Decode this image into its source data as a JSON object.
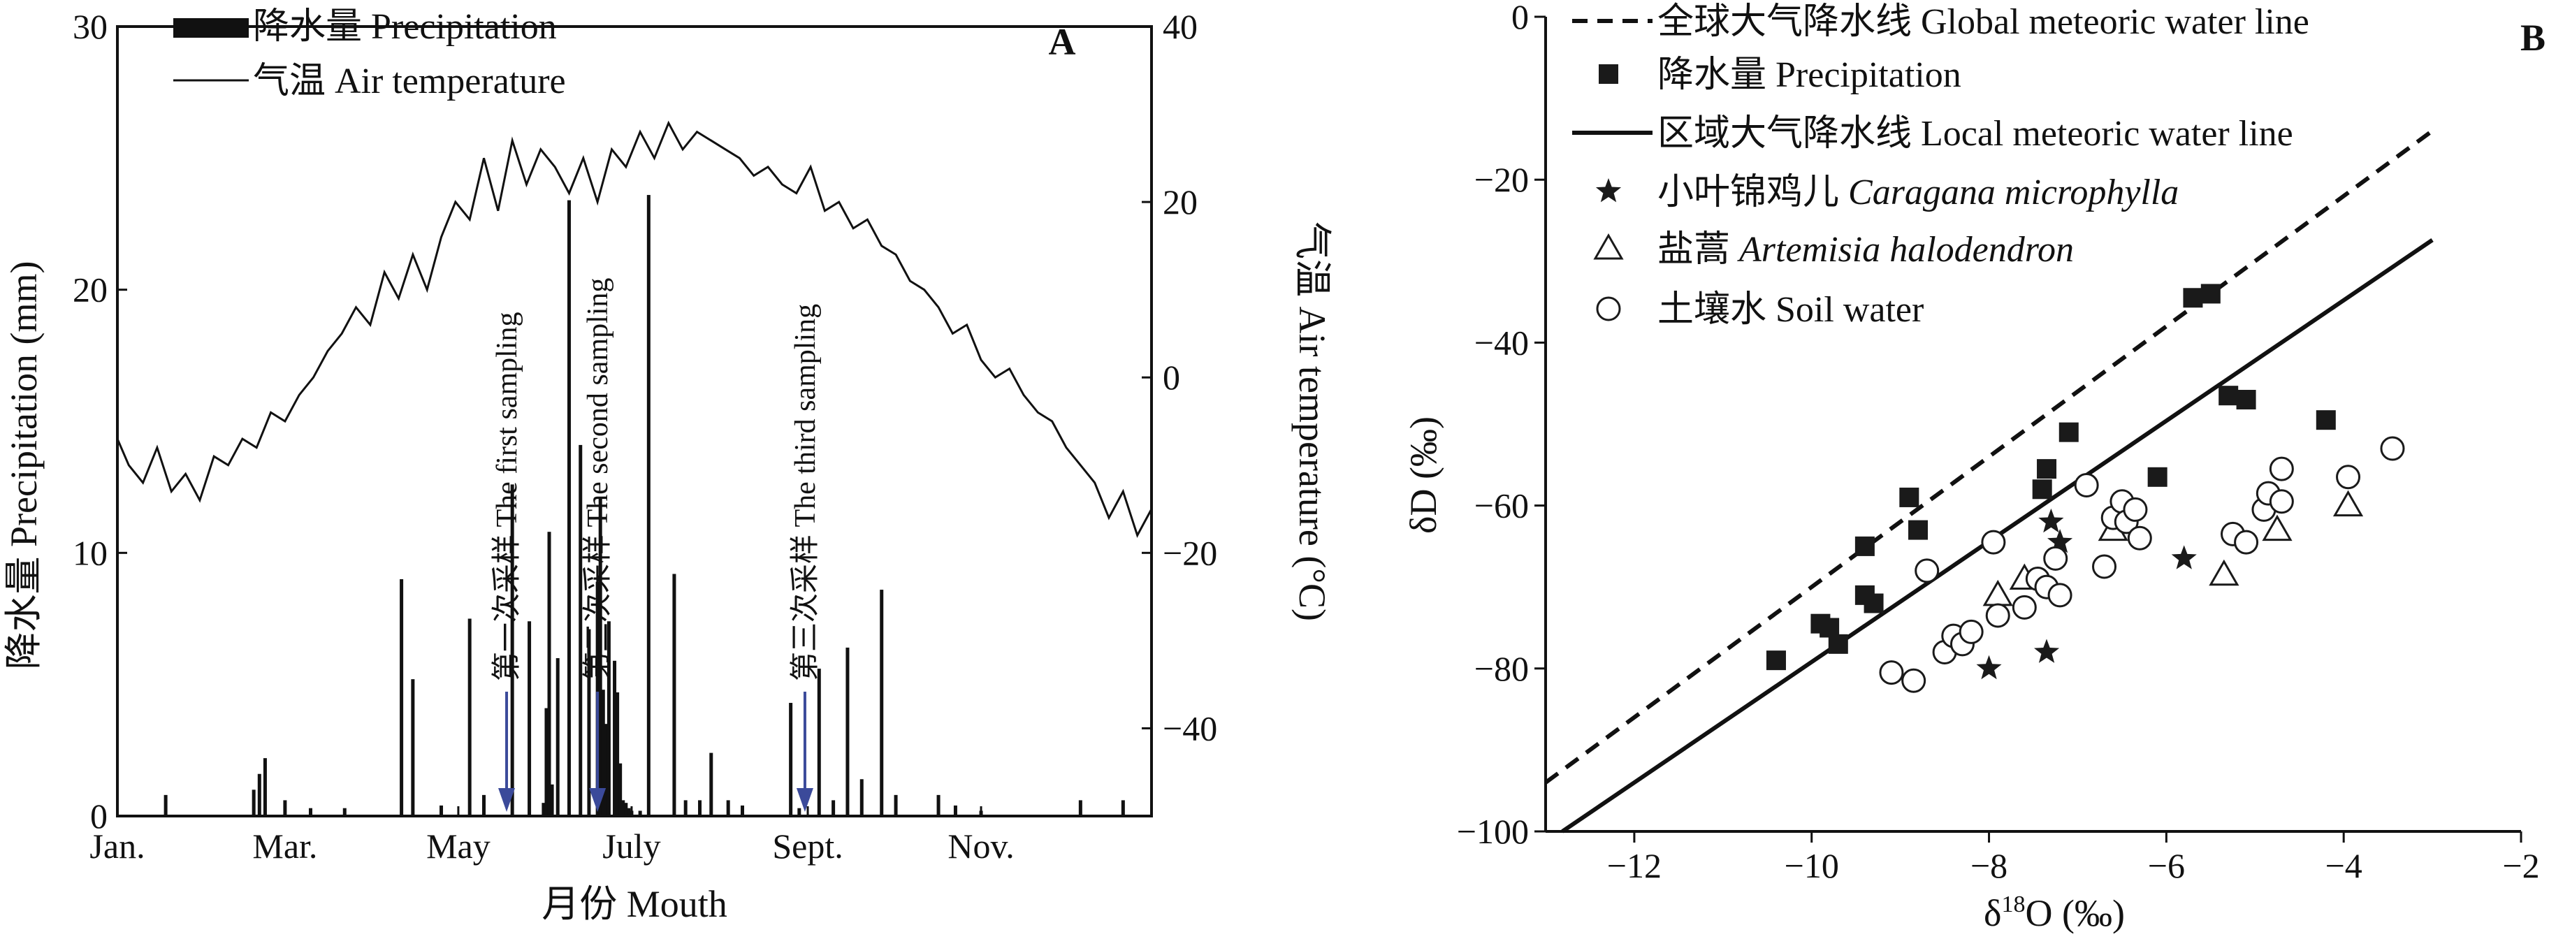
{
  "colors": {
    "ink": "#111111",
    "arrow": "#3b4a9a",
    "marker": "#1a1a1a"
  },
  "chart_data": [
    {
      "panel_label": "A",
      "type": "bar+line",
      "x_unit": "day of year",
      "xlim": [
        1,
        365
      ],
      "x_ticks": [
        {
          "x": 1,
          "label": "Jan."
        },
        {
          "x": 60,
          "label": "Mar."
        },
        {
          "x": 121,
          "label": "May"
        },
        {
          "x": 182,
          "label": "July"
        },
        {
          "x": 244,
          "label": "Sept."
        },
        {
          "x": 305,
          "label": "Nov."
        }
      ],
      "xlabel": "月份 Mouth",
      "ylabel_left": "降水量 Precipitation (mm)",
      "ylim_left": [
        0,
        30
      ],
      "yticks_left": [
        0,
        10,
        20,
        30
      ],
      "ylabel_right": "气温 Air temperature (°C)",
      "ylim_right": [
        -50,
        40
      ],
      "yticks_right": [
        -40,
        -20,
        0,
        20,
        40
      ],
      "legend": [
        {
          "label": "降水量 Precipitation",
          "style": "bar"
        },
        {
          "label": "气温 Air temperature",
          "style": "line"
        }
      ],
      "precipitation": {
        "name": "降水量 Precipitation",
        "days": [
          18,
          49,
          51,
          53,
          60,
          69,
          81,
          101,
          105,
          115,
          125,
          130,
          140,
          146,
          151,
          152,
          153,
          154,
          156,
          160,
          164,
          167,
          170,
          171,
          172,
          173,
          174,
          176,
          177,
          178,
          179,
          180,
          181,
          182,
          185,
          188,
          197,
          201,
          206,
          210,
          216,
          221,
          238,
          241,
          248,
          253,
          258,
          263,
          270,
          275,
          290,
          296,
          305,
          340,
          355
        ],
        "values": [
          0.8,
          1,
          1.6,
          2.2,
          0.6,
          0.3,
          0.3,
          9,
          5.2,
          0.4,
          7.5,
          0.8,
          12.6,
          7.4,
          0.5,
          4.1,
          10.8,
          1.2,
          6,
          23.4,
          14.1,
          7.1,
          8.9,
          12.1,
          4.8,
          3.5,
          7.4,
          5.9,
          4.7,
          2,
          0.6,
          0.5,
          0.3,
          0.2,
          0.2,
          23.6,
          9.2,
          0.6,
          0.6,
          2.4,
          0.6,
          0.4,
          4.3,
          0.3,
          5.6,
          0.6,
          6.4,
          1.4,
          8.6,
          0.8,
          0.8,
          0.4,
          0.2,
          0.6,
          0.6
        ]
      },
      "temperature": {
        "name": "气温 Air temperature",
        "days": [
          1,
          5,
          10,
          15,
          20,
          25,
          30,
          35,
          40,
          45,
          50,
          55,
          60,
          65,
          70,
          75,
          80,
          85,
          90,
          95,
          100,
          105,
          110,
          115,
          120,
          125,
          130,
          135,
          140,
          145,
          150,
          155,
          160,
          165,
          170,
          175,
          180,
          185,
          190,
          195,
          200,
          205,
          210,
          215,
          220,
          225,
          230,
          235,
          240,
          245,
          250,
          255,
          260,
          265,
          270,
          275,
          280,
          285,
          290,
          295,
          300,
          305,
          310,
          315,
          320,
          325,
          330,
          335,
          340,
          345,
          350,
          355,
          360,
          365
        ],
        "values": [
          -7,
          -10,
          -12,
          -8,
          -13,
          -11,
          -14,
          -9,
          -10,
          -7,
          -8,
          -4,
          -5,
          -2,
          0,
          3,
          5,
          8,
          6,
          12,
          9,
          14,
          10,
          16,
          20,
          18,
          25,
          19,
          27,
          22,
          26,
          24,
          21,
          25,
          20,
          26,
          24,
          28,
          25,
          29,
          26,
          28,
          27,
          26,
          25,
          23,
          24,
          22,
          21,
          24,
          19,
          20,
          17,
          18,
          15,
          14,
          11,
          10,
          8,
          5,
          6,
          2,
          0,
          1,
          -2,
          -4,
          -5,
          -8,
          -10,
          -12,
          -16,
          -13,
          -18,
          -15
        ]
      },
      "annotations": [
        {
          "day": 138,
          "label": "第一次采样 The first sampling"
        },
        {
          "day": 170,
          "label": "第二次采样 The second sampling"
        },
        {
          "day": 243,
          "label": "第三次采样 The third sampling"
        }
      ]
    },
    {
      "panel_label": "B",
      "type": "scatter+line",
      "xlabel_prefix": "δ",
      "xlabel_sup": "18",
      "xlabel_suffix": "O (‰)",
      "ylabel": "δD (‰)",
      "xlim": [
        -13,
        -2
      ],
      "ylim": [
        -100,
        0
      ],
      "xticks": [
        -12,
        -10,
        -8,
        -6,
        -4,
        -2
      ],
      "yticks": [
        -100,
        -80,
        -60,
        -40,
        -20,
        0
      ],
      "legend": [
        {
          "label": "全球大气降水线 Global meteoric water line",
          "style": "dashed",
          "italic_part": ""
        },
        {
          "label": "降水量 Precipitation",
          "style": "square",
          "italic_part": ""
        },
        {
          "label": "区域大气降水线 Local meteoric water line",
          "style": "solid",
          "italic_part": ""
        },
        {
          "label": "小叶锦鸡儿 ",
          "style": "star",
          "italic_part": "Caragana microphylla"
        },
        {
          "label": "盐蒿 ",
          "style": "triangle",
          "italic_part": "Artemisia halodendron"
        },
        {
          "label": "土壤水 Soil water",
          "style": "circle",
          "italic_part": ""
        }
      ],
      "gmwl": {
        "slope": 8,
        "intercept": 10
      },
      "lmwl": {
        "slope": 7.4,
        "intercept": -5.2
      },
      "series": [
        {
          "name": "降水量 Precipitation",
          "marker": "square",
          "points": [
            [
              -10.4,
              -79
            ],
            [
              -9.9,
              -74.5
            ],
            [
              -9.8,
              -75
            ],
            [
              -9.7,
              -77
            ],
            [
              -9.4,
              -71
            ],
            [
              -9.4,
              -65
            ],
            [
              -9.3,
              -72
            ],
            [
              -8.9,
              -59
            ],
            [
              -8.8,
              -63
            ],
            [
              -7.4,
              -58
            ],
            [
              -7.35,
              -55.5
            ],
            [
              -7.1,
              -51
            ],
            [
              -6.1,
              -56.5
            ],
            [
              -5.7,
              -34.5
            ],
            [
              -5.5,
              -34
            ],
            [
              -5.3,
              -46.5
            ],
            [
              -5.1,
              -47
            ],
            [
              -4.2,
              -49.5
            ]
          ]
        },
        {
          "name": "小叶锦鸡儿 Caragana microphylla",
          "marker": "star",
          "points": [
            [
              -8,
              -80
            ],
            [
              -7.35,
              -78
            ],
            [
              -7.3,
              -62
            ],
            [
              -7.2,
              -64.5
            ],
            [
              -5.8,
              -66.5
            ]
          ]
        },
        {
          "name": "盐蒿 Artemisia halodendron",
          "marker": "triangle",
          "points": [
            [
              -7.9,
              -71
            ],
            [
              -7.6,
              -69
            ],
            [
              -6.6,
              -63
            ],
            [
              -5.35,
              -68.5
            ],
            [
              -4.75,
              -63
            ],
            [
              -3.95,
              -60
            ]
          ]
        },
        {
          "name": "土壤水 Soil water",
          "marker": "circle",
          "points": [
            [
              -9.1,
              -80.5
            ],
            [
              -8.85,
              -81.5
            ],
            [
              -8.7,
              -68
            ],
            [
              -8.5,
              -78
            ],
            [
              -8.4,
              -76
            ],
            [
              -8.3,
              -77
            ],
            [
              -8.2,
              -75.5
            ],
            [
              -7.95,
              -64.5
            ],
            [
              -7.9,
              -73.5
            ],
            [
              -7.6,
              -72.5
            ],
            [
              -7.45,
              -69
            ],
            [
              -7.35,
              -70
            ],
            [
              -7.25,
              -66.5
            ],
            [
              -7.2,
              -71
            ],
            [
              -6.9,
              -57.5
            ],
            [
              -6.7,
              -67.5
            ],
            [
              -6.6,
              -61.5
            ],
            [
              -6.5,
              -59.5
            ],
            [
              -6.45,
              -62
            ],
            [
              -6.35,
              -60.5
            ],
            [
              -6.3,
              -64
            ],
            [
              -5.25,
              -63.5
            ],
            [
              -5.1,
              -64.5
            ],
            [
              -4.9,
              -60.5
            ],
            [
              -4.85,
              -58.5
            ],
            [
              -4.7,
              -59.5
            ],
            [
              -4.7,
              -55.5
            ],
            [
              -3.95,
              -56.5
            ],
            [
              -3.45,
              -53
            ]
          ]
        }
      ]
    }
  ]
}
